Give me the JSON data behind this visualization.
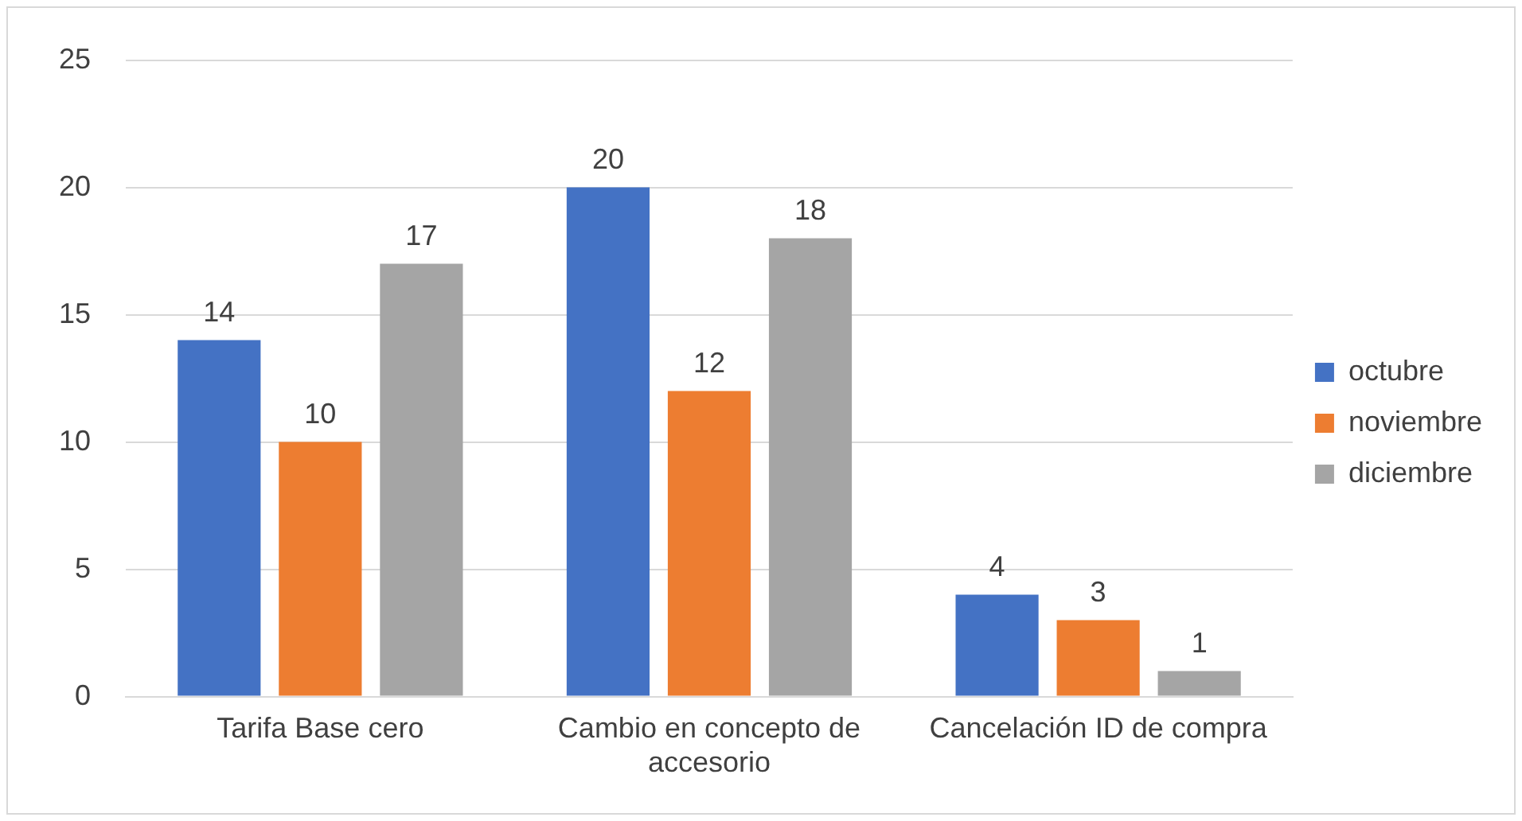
{
  "chart_data": {
    "type": "bar",
    "categories": [
      "Tarifa Base cero",
      "Cambio en concepto de accesorio",
      "Cancelación ID de compra"
    ],
    "series": [
      {
        "name": "octubre",
        "color": "#4472c4",
        "values": [
          14,
          20,
          4
        ]
      },
      {
        "name": "noviembre",
        "color": "#ed7d31",
        "values": [
          10,
          12,
          3
        ]
      },
      {
        "name": "diciembre",
        "color": "#a5a5a5",
        "values": [
          17,
          18,
          1
        ]
      }
    ],
    "ylim": [
      0,
      25
    ],
    "yticks": [
      0,
      5,
      10,
      15,
      20,
      25
    ],
    "grid": "y",
    "legend": "right",
    "data_labels": true
  }
}
